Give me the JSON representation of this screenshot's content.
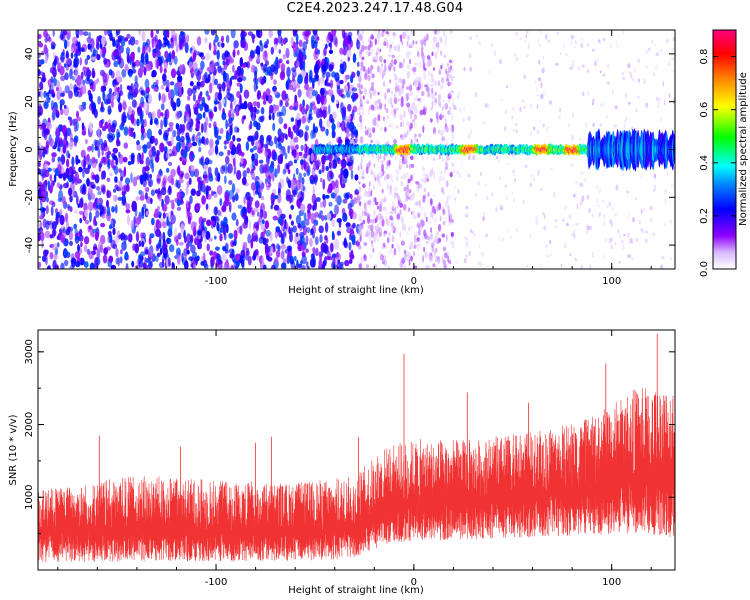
{
  "title": "C2E4.2023.247.17.48.G04",
  "chart_data": [
    {
      "type": "heatmap",
      "xlabel": "Height of straight line (km)",
      "ylabel": "Frequency (Hz)",
      "xlim": [
        -190,
        132
      ],
      "ylim": [
        -50,
        50
      ],
      "x_ticks": [
        -100,
        0,
        100
      ],
      "y_ticks": [
        -40,
        -20,
        0,
        20,
        40
      ],
      "colorbar": {
        "label": "Normalized spectral amplitude",
        "range": [
          0.0,
          0.9
        ],
        "ticks": [
          "0.0",
          "0.2",
          "0.4",
          "0.6",
          "0.8"
        ],
        "colormap": "rainbow (white-violet-blue-cyan-green-yellow-orange-red-magenta)"
      },
      "features": [
        {
          "name": "noise",
          "x_range": [
            -190,
            -28
          ],
          "amplitude": "0.1-0.3",
          "description": "dense broadband violet noise"
        },
        {
          "name": "noise",
          "x_range": [
            -28,
            20
          ],
          "amplitude": "0.0-0.15",
          "description": "sparser faint noise"
        },
        {
          "name": "signal band",
          "x_range": [
            -50,
            132
          ],
          "frequency_center": 0,
          "frequency_halfwidth": 2,
          "peak_amplitude": 0.88,
          "peak_x": [
            -5,
            28,
            65,
            80
          ]
        },
        {
          "name": "broadened band",
          "x_range": [
            88,
            132
          ],
          "frequency_halfwidth": 6,
          "amplitude": "0.2-0.45"
        }
      ]
    },
    {
      "type": "line",
      "xlabel": "Height of straight line (km)",
      "ylabel": "SNR (10 * v/v)",
      "xlim": [
        -190,
        132
      ],
      "ylim": [
        0,
        3300
      ],
      "x_ticks": [
        -100,
        0,
        100
      ],
      "y_ticks": [
        1000,
        2000,
        3000
      ],
      "series_color": "#f03232",
      "trend": {
        "x": [
          -190,
          -140,
          -100,
          -60,
          -30,
          -15,
          0,
          30,
          60,
          90,
          110,
          132
        ],
        "mean": [
          520,
          540,
          520,
          520,
          560,
          800,
          880,
          950,
          1000,
          1080,
          1200,
          1250
        ],
        "typical_min": [
          100,
          120,
          120,
          120,
          150,
          350,
          400,
          420,
          450,
          480,
          500,
          450
        ],
        "typical_max": [
          1100,
          1300,
          1250,
          1200,
          1300,
          1700,
          1800,
          1800,
          1900,
          2100,
          2500,
          2600
        ]
      },
      "notable_peaks": [
        {
          "x": -159,
          "y": 1850
        },
        {
          "x": -118,
          "y": 1700
        },
        {
          "x": -80,
          "y": 1750
        },
        {
          "x": -72,
          "y": 1830
        },
        {
          "x": -28,
          "y": 1830
        },
        {
          "x": -5,
          "y": 2970
        },
        {
          "x": 27,
          "y": 2440
        },
        {
          "x": 58,
          "y": 2300
        },
        {
          "x": 97,
          "y": 2840
        },
        {
          "x": 123,
          "y": 3250
        }
      ]
    }
  ]
}
